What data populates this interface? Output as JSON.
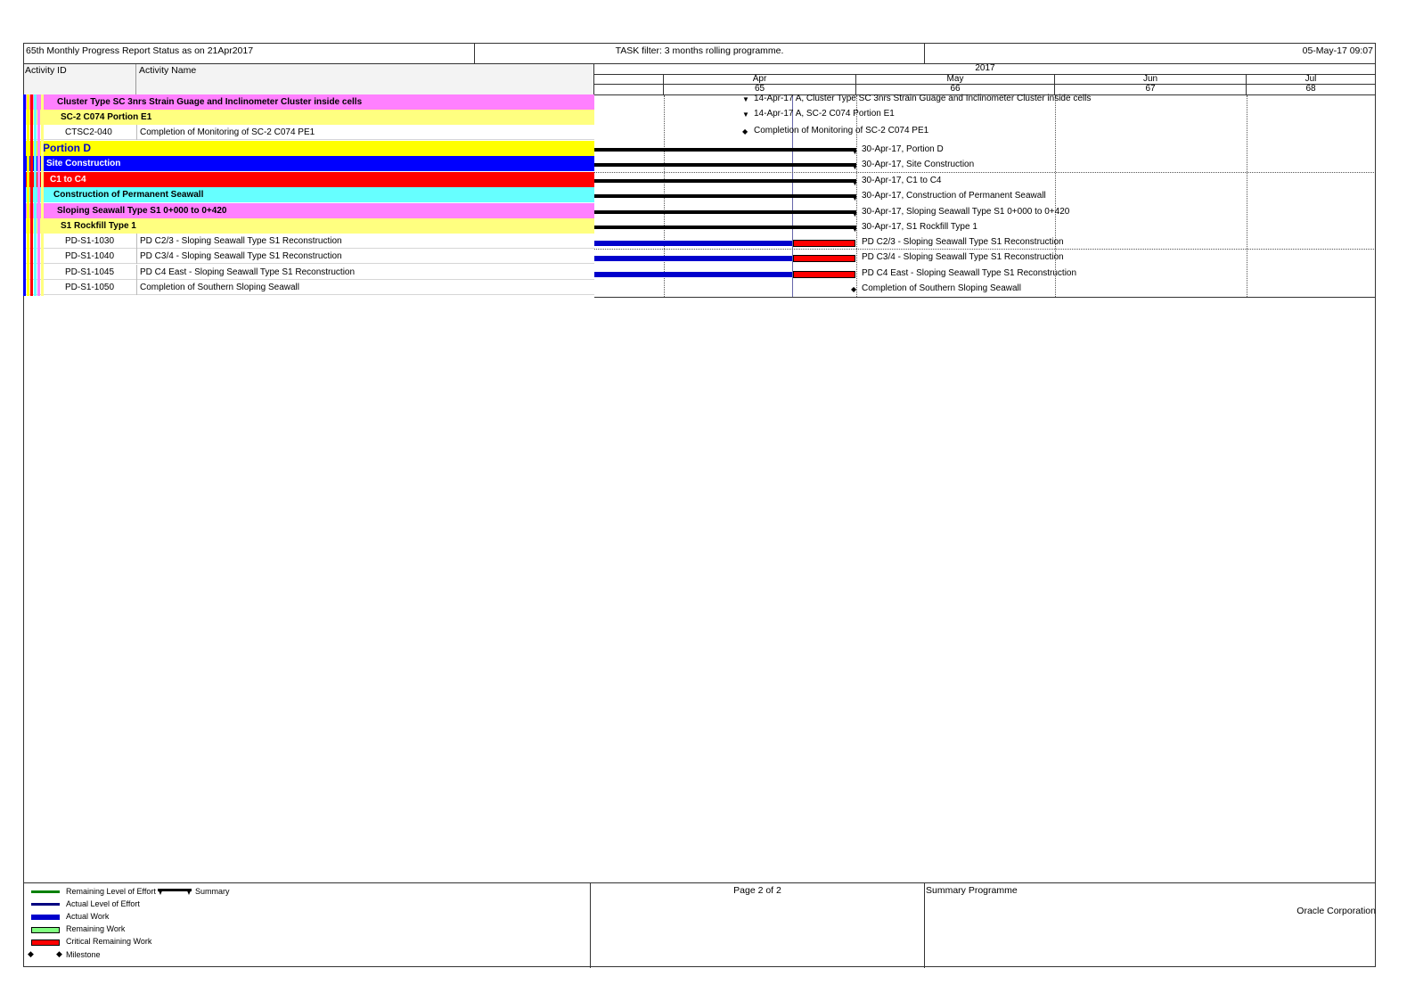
{
  "header": {
    "report_title": "65th Monthly Progress Report Status as on 21Apr2017",
    "filter": "TASK filter: 3 months rolling programme.",
    "print_date": "05-May-17 09:07"
  },
  "columns": {
    "activity_id": "Activity ID",
    "activity_name": "Activity Name"
  },
  "timeline": {
    "year": "2017",
    "months": [
      "Apr",
      "May",
      "Jun",
      "Jul"
    ],
    "periods": [
      "65",
      "66",
      "67",
      "68"
    ]
  },
  "rows": [
    {
      "kind": "group",
      "name": "Cluster Type SC 3nrs Strain Guage and Inclinometer Cluster inside cells",
      "color": "#ff80ff",
      "text_color": "#000000",
      "label": "14-Apr-17 A, Cluster Type SC 3nrs Strain Guage and Inclinometer Cluster inside cells"
    },
    {
      "kind": "group",
      "name": "SC-2 C074 Portion E1",
      "color": "#ffff80",
      "text_color": "#000000",
      "label": "14-Apr-17 A, SC-2 C074 Portion E1"
    },
    {
      "kind": "activity",
      "id": "CTSC2-040",
      "name": "Completion of Monitoring of SC-2 C074 PE1",
      "label": "Completion of Monitoring of SC-2 C074 PE1"
    },
    {
      "kind": "group",
      "name": "Portion D",
      "color": "#ffff00",
      "text_color": "#0000cc",
      "label": "30-Apr-17, Portion D"
    },
    {
      "kind": "group",
      "name": "Site Construction",
      "color": "#0000ff",
      "text_color": "#ffffff",
      "label": "30-Apr-17, Site Construction"
    },
    {
      "kind": "group",
      "name": "C1 to C4",
      "color": "#ff0000",
      "text_color": "#ffffff",
      "label": "30-Apr-17, C1 to C4"
    },
    {
      "kind": "group",
      "name": "Construction of Permanent Seawall",
      "color": "#66ffff",
      "text_color": "#000000",
      "label": "30-Apr-17, Construction of Permanent Seawall"
    },
    {
      "kind": "group",
      "name": "Sloping Seawall Type S1 0+000 to 0+420",
      "color": "#ff80ff",
      "text_color": "#000000",
      "label": "30-Apr-17, Sloping Seawall Type S1 0+000 to 0+420"
    },
    {
      "kind": "group",
      "name": "S1 Rockfill Type 1",
      "color": "#ffff80",
      "text_color": "#000000",
      "label": "30-Apr-17, S1 Rockfill Type 1"
    },
    {
      "kind": "activity",
      "id": "PD-S1-1030",
      "name": "PD C2/3 - Sloping Seawall Type S1 Reconstruction",
      "label": "PD C2/3 - Sloping Seawall Type S1 Reconstruction"
    },
    {
      "kind": "activity",
      "id": "PD-S1-1040",
      "name": "PD C3/4 - Sloping Seawall Type S1 Reconstruction",
      "label": "PD C3/4 - Sloping Seawall Type S1 Reconstruction"
    },
    {
      "kind": "activity",
      "id": "PD-S1-1045",
      "name": "PD C4 East - Sloping Seawall Type S1 Reconstruction",
      "label": "PD C4 East - Sloping Seawall Type S1 Reconstruction"
    },
    {
      "kind": "activity",
      "id": "PD-S1-1050",
      "name": "Completion of Southern Sloping Seawall",
      "label": "Completion of Southern Sloping Seawall"
    }
  ],
  "legend": {
    "items": [
      "Remaining Level of Effort",
      "Actual Level of Effort",
      "Actual Work",
      "Remaining Work",
      "Critical Remaining Work",
      "Milestone"
    ],
    "summary": "Summary",
    "colors": {
      "remaining_loe": "#008000",
      "actual_loe": "#000080",
      "actual_work": "#0000cc",
      "remaining_work": "#80ff80",
      "critical": "#ff0000"
    }
  },
  "footer": {
    "page": "Page 2 of 2",
    "programme": "Summary Programme",
    "company": "Oracle Corporation"
  }
}
